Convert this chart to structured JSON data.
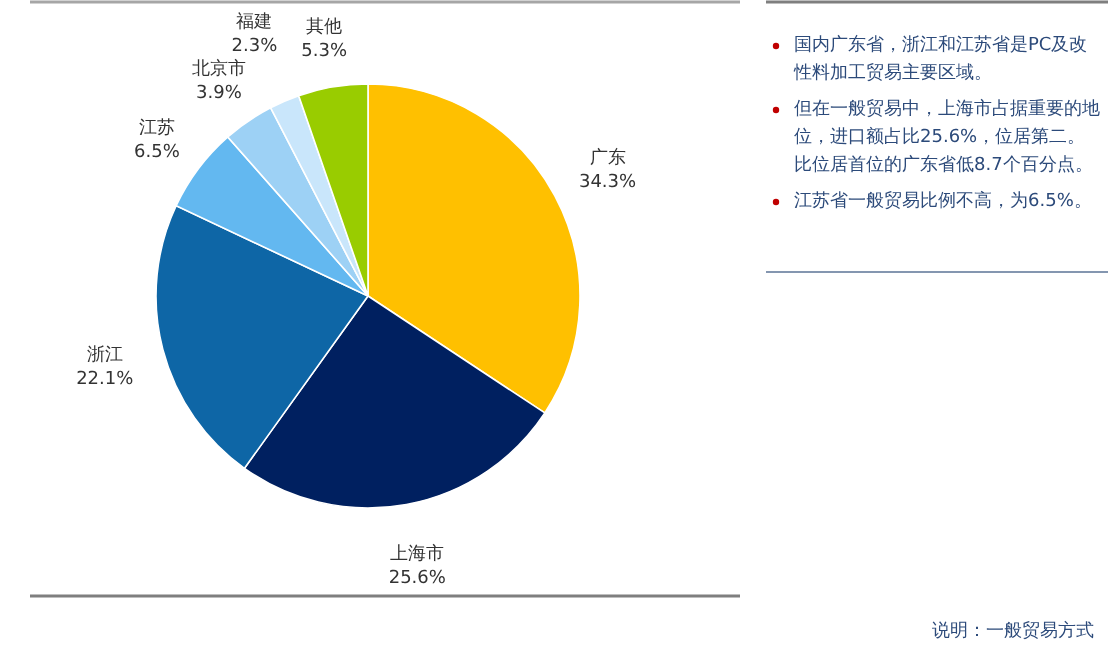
{
  "chart_data": {
    "type": "pie",
    "categories": [
      "广东",
      "上海市",
      "浙江",
      "江苏",
      "北京市",
      "福建",
      "其他"
    ],
    "values": [
      34.3,
      25.6,
      22.1,
      6.5,
      3.9,
      2.3,
      5.3
    ],
    "value_labels": [
      "34.3%",
      "25.6%",
      "22.1%",
      "6.5%",
      "3.9%",
      "2.3%",
      "5.3%"
    ],
    "colors": [
      "#ffc000",
      "#002060",
      "#0e66a6",
      "#63b8f0",
      "#9dd1f5",
      "#c9e6fb",
      "#99cc00"
    ],
    "annotations": [
      "国内广东省，浙江和江苏省是PC及改性料加工贸易主要区域。",
      "但在一般贸易中，上海市占据重要的地位，进口额占比25.6%，位居第二。比位居首位的广东省低8.7个百分点。",
      "江苏省一般贸易比例不高，为6.5%。",
      "说明：一般贸易方式"
    ]
  }
}
